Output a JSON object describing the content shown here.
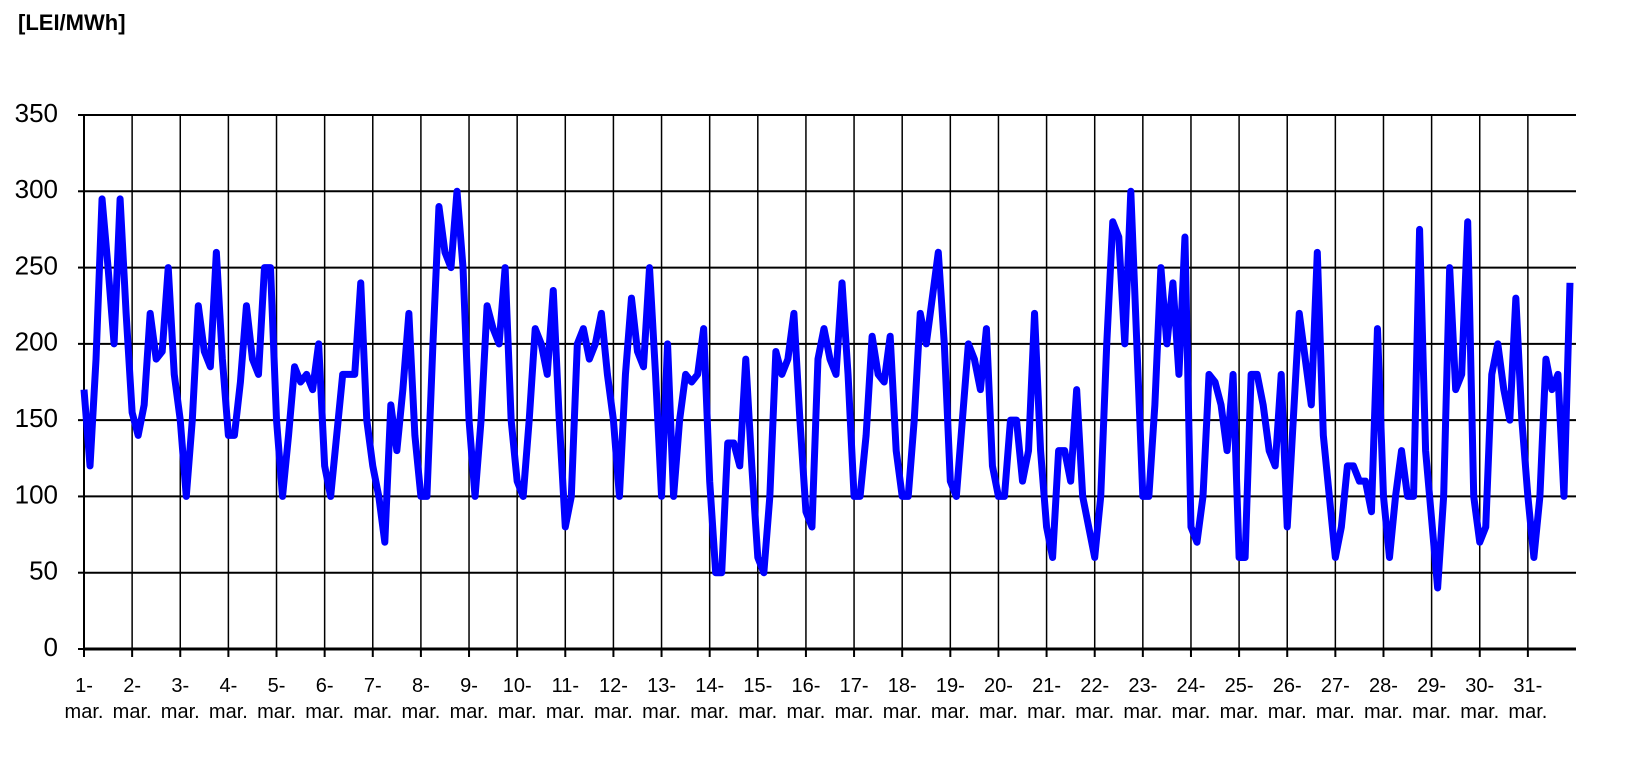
{
  "chart_data": {
    "type": "line",
    "y_label": "[LEI/MWh]",
    "x": [
      0,
      3,
      6,
      9,
      12,
      15,
      18,
      21,
      24,
      27,
      30,
      33,
      36,
      39,
      42,
      45,
      48,
      51,
      54,
      57,
      60,
      63,
      66,
      69,
      72,
      75,
      78,
      81,
      84,
      87,
      90,
      93,
      96,
      99,
      102,
      105,
      108,
      111,
      114,
      117,
      120,
      123,
      126,
      129,
      132,
      135,
      138,
      141,
      144,
      147,
      150,
      153,
      156,
      159,
      162,
      165,
      168,
      171,
      174,
      177,
      180,
      183,
      186,
      189,
      192,
      195,
      198,
      201,
      204,
      207,
      210,
      213,
      216,
      219,
      222,
      225,
      228,
      231,
      234,
      237,
      240,
      243,
      246,
      249,
      252,
      255,
      258,
      261,
      264,
      267,
      270,
      273,
      276,
      279,
      282,
      285,
      288,
      291,
      294,
      297,
      300,
      303,
      306,
      309,
      312,
      315,
      318,
      321,
      324,
      327,
      330,
      333,
      336,
      339,
      342,
      345,
      348,
      351,
      354,
      357,
      360,
      363,
      366,
      369,
      372,
      375,
      378,
      381,
      384,
      387,
      390,
      393,
      396,
      399,
      402,
      405,
      408,
      411,
      414,
      417,
      420,
      423,
      426,
      429,
      432,
      435,
      438,
      441,
      444,
      447,
      450,
      453,
      456,
      459,
      462,
      465,
      468,
      471,
      474,
      477,
      480,
      483,
      486,
      489,
      492,
      495,
      498,
      501,
      504,
      507,
      510,
      513,
      516,
      519,
      522,
      525,
      528,
      531,
      534,
      537,
      540,
      543,
      546,
      549,
      552,
      555,
      558,
      561,
      564,
      567,
      570,
      573,
      576,
      579,
      582,
      585,
      588,
      591,
      594,
      597,
      600,
      603,
      606,
      609,
      612,
      615,
      618,
      621,
      624,
      627,
      630,
      633,
      636,
      639,
      642,
      645,
      648,
      651,
      654,
      657,
      660,
      663,
      666,
      669,
      672,
      675,
      678,
      681,
      684,
      687,
      690,
      693,
      696,
      699,
      702,
      705,
      708,
      711,
      714,
      717,
      720,
      723,
      726,
      729,
      732,
      735,
      738,
      741
    ],
    "series": [
      {
        "color": "#0000ff",
        "values": [
          170,
          120,
          190,
          295,
          250,
          200,
          295,
          220,
          155,
          140,
          160,
          220,
          190,
          195,
          250,
          180,
          150,
          100,
          150,
          225,
          195,
          185,
          260,
          190,
          140,
          140,
          175,
          225,
          190,
          180,
          250,
          250,
          150,
          100,
          140,
          185,
          175,
          180,
          170,
          200,
          120,
          100,
          140,
          180,
          180,
          180,
          240,
          150,
          120,
          100,
          70,
          160,
          130,
          170,
          220,
          140,
          100,
          100,
          200,
          290,
          260,
          250,
          300,
          250,
          150,
          100,
          150,
          225,
          210,
          200,
          250,
          150,
          110,
          100,
          150,
          210,
          200,
          180,
          235,
          150,
          80,
          100,
          200,
          210,
          190,
          200,
          220,
          180,
          150,
          100,
          180,
          230,
          195,
          185,
          250,
          180,
          100,
          200,
          100,
          150,
          180,
          175,
          180,
          210,
          110,
          50,
          50,
          135,
          135,
          120,
          190,
          120,
          60,
          50,
          100,
          195,
          180,
          190,
          220,
          150,
          90,
          80,
          190,
          210,
          190,
          180,
          240,
          180,
          100,
          100,
          140,
          205,
          180,
          175,
          205,
          130,
          100,
          100,
          150,
          220,
          200,
          230,
          260,
          200,
          110,
          100,
          150,
          200,
          190,
          170,
          210,
          120,
          100,
          100,
          150,
          150,
          110,
          130,
          220,
          130,
          80,
          60,
          130,
          130,
          110,
          170,
          100,
          80,
          60,
          100,
          200,
          280,
          270,
          200,
          300,
          200,
          100,
          100,
          160,
          250,
          200,
          240,
          180,
          270,
          80,
          70,
          100,
          180,
          175,
          160,
          130,
          180,
          60,
          60,
          180,
          180,
          160,
          130,
          120,
          180,
          80,
          150,
          220,
          190,
          160,
          260,
          140,
          100,
          60,
          80,
          120,
          120,
          110,
          110,
          90,
          210,
          100,
          60,
          100,
          130,
          100,
          100,
          275,
          130,
          85,
          40,
          100,
          250,
          170,
          180,
          280,
          100,
          70,
          80,
          180,
          200,
          170,
          150,
          230,
          150,
          100,
          60,
          100,
          190,
          170,
          180,
          100,
          240
        ]
      }
    ],
    "xlim": [
      0,
      744
    ],
    "xticks": [
      {
        "value": 0,
        "label": "1- mar."
      },
      {
        "value": 24,
        "label": "2- mar."
      },
      {
        "value": 48,
        "label": "3- mar."
      },
      {
        "value": 72,
        "label": "4- mar."
      },
      {
        "value": 96,
        "label": "5- mar."
      },
      {
        "value": 120,
        "label": "6- mar."
      },
      {
        "value": 144,
        "label": "7- mar."
      },
      {
        "value": 168,
        "label": "8- mar."
      },
      {
        "value": 192,
        "label": "9- mar."
      },
      {
        "value": 216,
        "label": "10- mar."
      },
      {
        "value": 240,
        "label": "11- mar."
      },
      {
        "value": 264,
        "label": "12- mar."
      },
      {
        "value": 288,
        "label": "13- mar."
      },
      {
        "value": 312,
        "label": "14- mar."
      },
      {
        "value": 336,
        "label": "15- mar."
      },
      {
        "value": 360,
        "label": "16- mar."
      },
      {
        "value": 384,
        "label": "17- mar."
      },
      {
        "value": 408,
        "label": "18- mar."
      },
      {
        "value": 432,
        "label": "19- mar."
      },
      {
        "value": 456,
        "label": "20- mar."
      },
      {
        "value": 480,
        "label": "21- mar."
      },
      {
        "value": 504,
        "label": "22- mar."
      },
      {
        "value": 528,
        "label": "23- mar."
      },
      {
        "value": 552,
        "label": "24- mar."
      },
      {
        "value": 576,
        "label": "25- mar."
      },
      {
        "value": 600,
        "label": "26- mar."
      },
      {
        "value": 624,
        "label": "27- mar."
      },
      {
        "value": 648,
        "label": "28- mar."
      },
      {
        "value": 672,
        "label": "29- mar."
      },
      {
        "value": 696,
        "label": "30- mar."
      },
      {
        "value": 720,
        "label": "31- mar."
      }
    ],
    "ylim": [
      0,
      350
    ],
    "yticks": [
      0,
      50,
      100,
      150,
      200,
      250,
      300,
      350
    ],
    "grid": true
  }
}
